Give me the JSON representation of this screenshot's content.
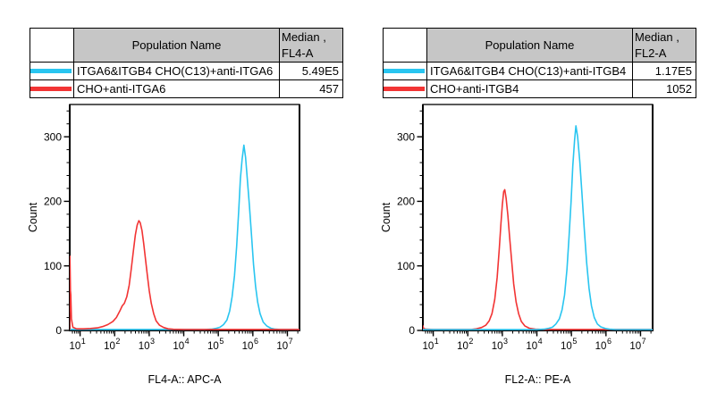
{
  "colors": {
    "series_cyan": "#29c5f0",
    "series_red": "#f23434",
    "table_header_bg": "#c6c6c6",
    "axis": "#000000",
    "background": "#ffffff"
  },
  "panels": [
    {
      "table": {
        "population_header": "Population Name",
        "median_header_line1": "Median ,",
        "median_header_line2": "FL4-A",
        "header_bg": "#c6c6c6",
        "rows": [
          {
            "name": "ITGA6&ITGB4 CHO(C13)+anti-ITGA6",
            "median": "5.49E5",
            "color": "#29c5f0"
          },
          {
            "name": "CHO+anti-ITGA6",
            "median": "457",
            "color": "#f23434"
          }
        ]
      }
    },
    {
      "table": {
        "population_header": "Population Name",
        "median_header_line1": "Median ,",
        "median_header_line2": "FL2-A",
        "header_bg": "#c6c6c6",
        "rows": [
          {
            "name": "ITGA6&ITGB4 CHO(C13)+anti-ITGB4",
            "median": "1.17E5",
            "color": "#29c5f0"
          },
          {
            "name": "CHO+anti-ITGB4",
            "median": "1052",
            "color": "#f23434"
          }
        ]
      }
    }
  ],
  "chart_data": [
    {
      "type": "line",
      "subtype": "flow-cytometry-histogram",
      "title": "",
      "xlabel": "FL4-A:: APC-A",
      "ylabel": "Count",
      "x_scale": "log",
      "x_range_log10": [
        0.7,
        7.35
      ],
      "x_major_ticks_log10": [
        1,
        2,
        3,
        4,
        5,
        6,
        7
      ],
      "x_tick_labels": [
        "10^1",
        "10^2",
        "10^3",
        "10^4",
        "10^5",
        "10^6",
        "10^7"
      ],
      "ylim": [
        0,
        350
      ],
      "y_major_ticks": [
        0,
        100,
        200,
        300
      ],
      "y_minor_step": 20,
      "grid": false,
      "legend_position": "table-above",
      "series": [
        {
          "name": "ITGA6&ITGB4 CHO(C13)+anti-ITGA6",
          "color": "#29c5f0",
          "median_value": "5.49E5",
          "peak_count": 287,
          "points_log10x_count": [
            [
              0.7,
              1.5
            ],
            [
              4.6,
              1.5
            ],
            [
              4.8,
              2
            ],
            [
              4.95,
              3.5
            ],
            [
              5.05,
              5
            ],
            [
              5.15,
              9
            ],
            [
              5.25,
              16
            ],
            [
              5.33,
              30
            ],
            [
              5.4,
              52
            ],
            [
              5.47,
              85
            ],
            [
              5.53,
              130
            ],
            [
              5.59,
              185
            ],
            [
              5.64,
              235
            ],
            [
              5.69,
              265
            ],
            [
              5.74,
              287
            ],
            [
              5.79,
              268
            ],
            [
              5.84,
              235
            ],
            [
              5.9,
              193
            ],
            [
              5.96,
              148
            ],
            [
              6.02,
              102
            ],
            [
              6.08,
              68
            ],
            [
              6.14,
              44
            ],
            [
              6.21,
              26
            ],
            [
              6.3,
              13
            ],
            [
              6.4,
              7
            ],
            [
              6.52,
              3.5
            ],
            [
              6.65,
              2
            ],
            [
              6.8,
              1.5
            ],
            [
              7.35,
              1.5
            ]
          ]
        },
        {
          "name": "CHO+anti-ITGA6",
          "color": "#f23434",
          "median_value": "457",
          "peak_count": 170,
          "points_log10x_count": [
            [
              0.7,
              2
            ],
            [
              0.705,
              115
            ],
            [
              0.72,
              62
            ],
            [
              0.73,
              55
            ],
            [
              0.75,
              18
            ],
            [
              0.79,
              5
            ],
            [
              0.9,
              2.5
            ],
            [
              1.1,
              2.5
            ],
            [
              1.3,
              3
            ],
            [
              1.5,
              4
            ],
            [
              1.65,
              6
            ],
            [
              1.8,
              9
            ],
            [
              1.95,
              14
            ],
            [
              2.05,
              20
            ],
            [
              2.15,
              30
            ],
            [
              2.22,
              38
            ],
            [
              2.28,
              42
            ],
            [
              2.35,
              52
            ],
            [
              2.42,
              70
            ],
            [
              2.48,
              95
            ],
            [
              2.54,
              122
            ],
            [
              2.6,
              148
            ],
            [
              2.65,
              163
            ],
            [
              2.7,
              170
            ],
            [
              2.74,
              167
            ],
            [
              2.79,
              155
            ],
            [
              2.84,
              135
            ],
            [
              2.89,
              112
            ],
            [
              2.94,
              88
            ],
            [
              3.0,
              62
            ],
            [
              3.06,
              42
            ],
            [
              3.13,
              26
            ],
            [
              3.2,
              15
            ],
            [
              3.3,
              8
            ],
            [
              3.42,
              4.5
            ],
            [
              3.55,
              2.5
            ],
            [
              3.7,
              1.8
            ],
            [
              4.0,
              1.5
            ],
            [
              7.35,
              1.5
            ]
          ]
        }
      ]
    },
    {
      "type": "line",
      "subtype": "flow-cytometry-histogram",
      "title": "",
      "xlabel": "FL2-A:: PE-A",
      "ylabel": "Count",
      "x_scale": "log",
      "x_range_log10": [
        0.7,
        7.35
      ],
      "x_major_ticks_log10": [
        1,
        2,
        3,
        4,
        5,
        6,
        7
      ],
      "x_tick_labels": [
        "10^1",
        "10^2",
        "10^3",
        "10^4",
        "10^5",
        "10^6",
        "10^7"
      ],
      "ylim": [
        0,
        350
      ],
      "y_major_ticks": [
        0,
        100,
        200,
        300
      ],
      "y_minor_step": 20,
      "grid": false,
      "legend_position": "table-above",
      "series": [
        {
          "name": "CHO+anti-ITGB4",
          "color": "#f23434",
          "median_value": "1052",
          "peak_count": 218,
          "points_log10x_count": [
            [
              0.7,
              1.5
            ],
            [
              0.703,
              7
            ],
            [
              0.72,
              3
            ],
            [
              0.78,
              2
            ],
            [
              1.0,
              1.5
            ],
            [
              2.1,
              1.5
            ],
            [
              2.25,
              2.5
            ],
            [
              2.4,
              4.5
            ],
            [
              2.52,
              8
            ],
            [
              2.62,
              15
            ],
            [
              2.7,
              26
            ],
            [
              2.78,
              48
            ],
            [
              2.85,
              82
            ],
            [
              2.91,
              125
            ],
            [
              2.96,
              165
            ],
            [
              3.0,
              195
            ],
            [
              3.04,
              215
            ],
            [
              3.07,
              218
            ],
            [
              3.11,
              205
            ],
            [
              3.16,
              178
            ],
            [
              3.21,
              145
            ],
            [
              3.27,
              108
            ],
            [
              3.33,
              72
            ],
            [
              3.4,
              44
            ],
            [
              3.47,
              26
            ],
            [
              3.55,
              14
            ],
            [
              3.65,
              7
            ],
            [
              3.78,
              3.5
            ],
            [
              3.95,
              2
            ],
            [
              4.2,
              1.5
            ],
            [
              7.35,
              1.5
            ]
          ]
        },
        {
          "name": "ITGA6&ITGB4 CHO(C13)+anti-ITGB4",
          "color": "#29c5f0",
          "median_value": "1.17E5",
          "peak_count": 317,
          "points_log10x_count": [
            [
              0.7,
              1.2
            ],
            [
              4.0,
              1.2
            ],
            [
              4.2,
              2
            ],
            [
              4.35,
              3.5
            ],
            [
              4.45,
              5
            ],
            [
              4.55,
              10
            ],
            [
              4.65,
              18
            ],
            [
              4.73,
              32
            ],
            [
              4.8,
              55
            ],
            [
              4.87,
              95
            ],
            [
              4.93,
              145
            ],
            [
              4.99,
              200
            ],
            [
              5.04,
              255
            ],
            [
              5.09,
              295
            ],
            [
              5.13,
              317
            ],
            [
              5.18,
              300
            ],
            [
              5.24,
              262
            ],
            [
              5.3,
              215
            ],
            [
              5.37,
              158
            ],
            [
              5.44,
              105
            ],
            [
              5.51,
              65
            ],
            [
              5.58,
              38
            ],
            [
              5.66,
              20
            ],
            [
              5.75,
              10
            ],
            [
              5.85,
              5.5
            ],
            [
              5.98,
              3
            ],
            [
              6.1,
              2
            ],
            [
              6.25,
              1.5
            ],
            [
              7.35,
              1.2
            ]
          ]
        }
      ]
    }
  ]
}
